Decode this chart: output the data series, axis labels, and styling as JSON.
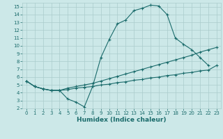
{
  "title": "",
  "xlabel": "Humidex (Indice chaleur)",
  "xlim": [
    -0.5,
    23.5
  ],
  "ylim": [
    2,
    15.5
  ],
  "xticks": [
    0,
    1,
    2,
    3,
    4,
    5,
    6,
    7,
    8,
    9,
    10,
    11,
    12,
    13,
    14,
    15,
    16,
    17,
    18,
    19,
    20,
    21,
    22,
    23
  ],
  "yticks": [
    2,
    3,
    4,
    5,
    6,
    7,
    8,
    9,
    10,
    11,
    12,
    13,
    14,
    15
  ],
  "bg_color": "#cce8e8",
  "line_color": "#1a6b6b",
  "grid_color": "#aacccc",
  "c1_x": [
    0,
    1,
    2,
    3,
    4,
    5,
    6,
    7,
    8,
    9,
    10,
    11,
    12,
    13,
    14,
    15,
    16,
    17,
    18,
    19,
    20,
    21,
    22
  ],
  "c1_y": [
    5.5,
    4.8,
    4.5,
    4.3,
    4.3,
    3.2,
    2.8,
    2.2,
    4.8,
    8.5,
    10.8,
    12.8,
    13.3,
    14.5,
    14.8,
    15.2,
    15.1,
    14.0,
    11.0,
    10.2,
    9.5,
    8.5,
    7.5
  ],
  "c2_x": [
    0,
    1,
    2,
    3,
    4,
    5,
    6,
    7,
    8,
    9,
    10,
    11,
    12,
    13,
    14,
    15,
    16,
    17,
    18,
    19,
    20,
    21,
    22,
    23
  ],
  "c2_y": [
    5.5,
    4.8,
    4.5,
    4.3,
    4.3,
    4.6,
    4.8,
    5.0,
    5.2,
    5.5,
    5.8,
    6.1,
    6.4,
    6.7,
    7.0,
    7.3,
    7.6,
    7.9,
    8.2,
    8.5,
    8.8,
    9.2,
    9.5,
    9.8
  ],
  "c3_x": [
    0,
    1,
    2,
    3,
    4,
    5,
    6,
    7,
    8,
    9,
    10,
    11,
    12,
    13,
    14,
    15,
    16,
    17,
    18,
    19,
    20,
    21,
    22,
    23
  ],
  "c3_y": [
    5.5,
    4.8,
    4.5,
    4.3,
    4.3,
    4.4,
    4.6,
    4.7,
    4.8,
    5.0,
    5.1,
    5.3,
    5.4,
    5.6,
    5.7,
    5.9,
    6.0,
    6.2,
    6.3,
    6.5,
    6.6,
    6.8,
    6.9,
    7.5
  ],
  "tick_fontsize": 5.0,
  "xlabel_fontsize": 6.5
}
